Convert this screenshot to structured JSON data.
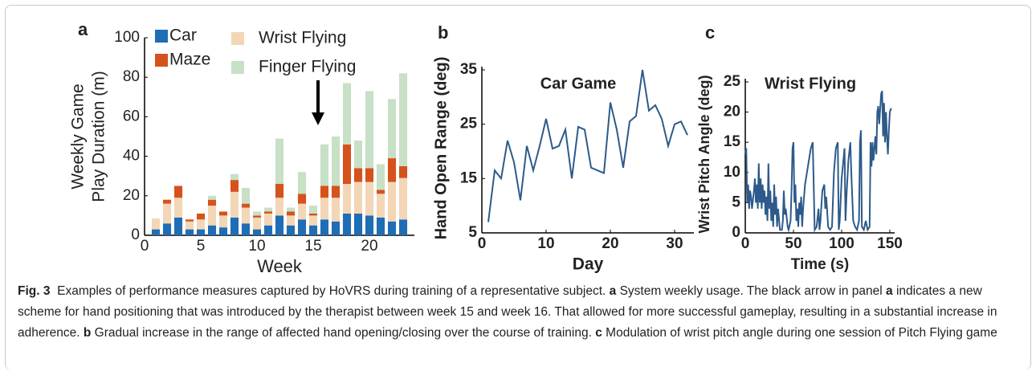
{
  "panel_labels": [
    "a",
    "b",
    "c"
  ],
  "chart_data": [
    {
      "type": "bar",
      "stacked": true,
      "xlabel": "Week",
      "ylabel": [
        "Weekly Game",
        "Play Duration (m)"
      ],
      "x": [
        1,
        2,
        3,
        4,
        5,
        6,
        7,
        8,
        9,
        10,
        11,
        12,
        13,
        14,
        15,
        16,
        17,
        18,
        19,
        20,
        21,
        22,
        23
      ],
      "xlim": [
        0,
        24
      ],
      "xticks": [
        0,
        5,
        10,
        15,
        20
      ],
      "ylim": [
        0,
        100
      ],
      "yticks": [
        0,
        20,
        40,
        60,
        80,
        100
      ],
      "series": [
        {
          "name": "Car",
          "color": "#1f6db5",
          "values": [
            3,
            6,
            9,
            3,
            3,
            5,
            4,
            9,
            6,
            3,
            5,
            10,
            5,
            8,
            5,
            8,
            7,
            11,
            11,
            10,
            9,
            7,
            8
          ]
        },
        {
          "name": "Wrist Flying",
          "color": "#f3d6b6",
          "values": [
            5.5,
            10,
            10,
            4,
            5,
            10,
            6,
            13,
            8,
            6,
            6,
            9,
            5,
            8,
            5,
            11,
            12,
            15,
            16,
            17,
            12,
            20,
            21
          ]
        },
        {
          "name": "Maze",
          "color": "#d5521d",
          "values": [
            0,
            2,
            6,
            1,
            3,
            3,
            2,
            6,
            2,
            1,
            1,
            7,
            2,
            5,
            1,
            6,
            6,
            20,
            7,
            7,
            2,
            12,
            6
          ]
        },
        {
          "name": "Finger Flying",
          "color": "#c7e0c6",
          "values": [
            0,
            0,
            0,
            0,
            0,
            2,
            0,
            3,
            8,
            2,
            2,
            23,
            2,
            11,
            4,
            21,
            25,
            31,
            14,
            39,
            13,
            30,
            47
          ]
        }
      ]
    },
    {
      "type": "line",
      "title": "Car Game",
      "xlabel": "Day",
      "ylabel": "Hand Open Range (deg)",
      "color": "#2d5a8a",
      "x": [
        1,
        2,
        3,
        4,
        5,
        6,
        7,
        8,
        9,
        10,
        11,
        12,
        13,
        14,
        15,
        16,
        17,
        18,
        19,
        20,
        21,
        22,
        23,
        24,
        25,
        26,
        27,
        28,
        29,
        30,
        31,
        32
      ],
      "values": [
        7,
        16.5,
        15,
        22,
        18,
        11,
        21,
        16.5,
        21,
        26,
        20.5,
        21,
        24,
        15,
        24.5,
        24,
        17,
        16.5,
        16,
        29,
        24,
        17,
        25.5,
        26.5,
        35,
        27.5,
        28.5,
        26,
        21,
        25,
        25.5,
        23
      ],
      "xlim": [
        0,
        33
      ],
      "xticks": [
        0,
        10,
        20,
        30
      ],
      "ylim": [
        5,
        35
      ],
      "yticks": [
        5,
        15,
        25,
        35
      ]
    },
    {
      "type": "line",
      "title": "Wrist Flying",
      "xlabel": "Time (s)",
      "ylabel": "Wrist Pitch Angle (deg)",
      "color": "#2d5a8a",
      "x": [
        0,
        1,
        2,
        3,
        4,
        5,
        6,
        7,
        9,
        10,
        11,
        12,
        13,
        14,
        15,
        16,
        17,
        18,
        19,
        20,
        21,
        22,
        23,
        24,
        25,
        26,
        27,
        28,
        29,
        30,
        31,
        32,
        33,
        34,
        36,
        38,
        39,
        40,
        41,
        42,
        44,
        45,
        47,
        48,
        49,
        50,
        51,
        52,
        53,
        54,
        55,
        56,
        57,
        58,
        59,
        60,
        62,
        65,
        68,
        70,
        71,
        72,
        74,
        76,
        77,
        78,
        80,
        82,
        83,
        84,
        86,
        88,
        90,
        92,
        94,
        96,
        97,
        98,
        100,
        103,
        104,
        105,
        107,
        109,
        110,
        112,
        114,
        116,
        118,
        119,
        120,
        121,
        123,
        125,
        127,
        129,
        130,
        131,
        132,
        133,
        134,
        135,
        136,
        137,
        138,
        139,
        141,
        142,
        143,
        144,
        145,
        146,
        147,
        148,
        149,
        150,
        151,
        152
      ],
      "values": [
        13,
        14,
        5,
        8,
        4,
        7,
        6,
        4,
        7,
        9,
        5,
        8,
        4,
        11.5,
        5,
        9,
        4,
        8,
        5,
        7,
        3,
        6,
        2,
        11.5,
        4,
        7,
        2,
        5,
        1,
        8,
        3,
        6,
        1,
        4,
        0.5,
        0.5,
        2,
        7,
        3,
        4,
        1,
        0.5,
        2,
        7,
        14,
        15,
        5,
        8,
        2,
        4,
        1,
        5,
        3,
        6,
        1,
        4,
        8,
        11,
        14,
        15,
        8,
        0.5,
        1,
        4,
        0.5,
        2,
        7,
        8,
        4,
        6,
        1,
        0.5,
        1,
        10,
        14,
        15,
        0.5,
        2,
        9,
        14,
        2,
        6,
        12,
        15,
        10,
        2,
        1,
        0.5,
        2,
        15,
        17,
        1,
        0.5,
        2,
        0.5,
        1,
        15,
        11,
        15,
        12,
        14,
        16,
        13,
        20,
        21,
        18,
        23,
        23.5,
        16,
        21.5,
        15,
        20,
        16,
        13,
        17,
        20,
        20.5,
        20.5
      ],
      "xlim": [
        0,
        155
      ],
      "xticks": [
        0,
        50,
        100,
        150
      ],
      "ylim": [
        0,
        25
      ],
      "yticks": [
        0,
        5,
        10,
        15,
        20,
        25
      ]
    }
  ],
  "caption": {
    "label": "Fig. 3",
    "parts": [
      "Examples of performance measures captured by HoVRS during training of a representative subject.",
      "a",
      "System weekly usage. The black arrow in panel",
      "a",
      "indicates a new scheme for hand positioning that was introduced by the therapist between week 15 and week 16. That allowed for more successful gameplay, resulting in a substantial increase in adherence.",
      "b",
      "Gradual increase in the range of affected hand opening/closing over the course of training.",
      "c",
      "Modulation of wrist pitch angle during one session of Pitch Flying game"
    ]
  }
}
